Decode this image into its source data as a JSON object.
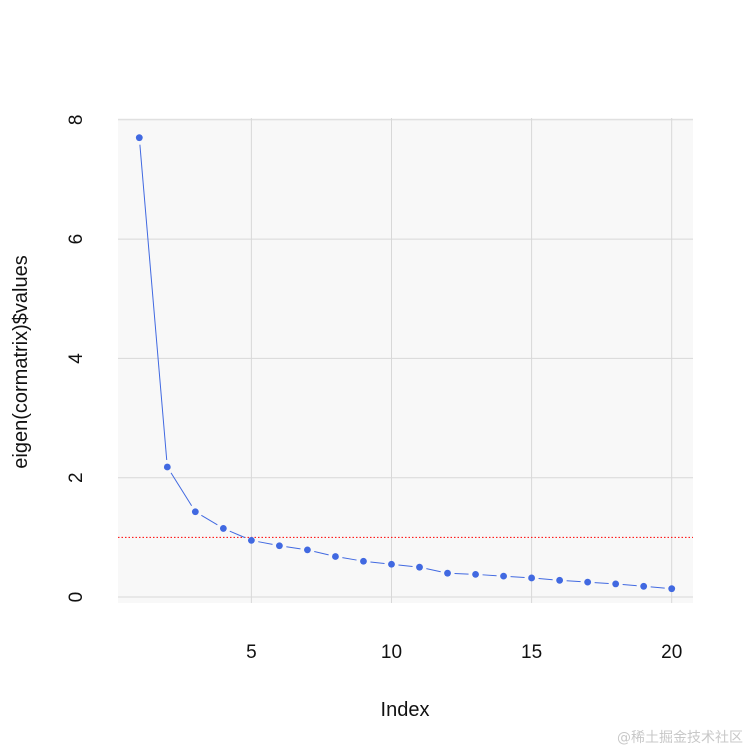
{
  "chart_data": {
    "type": "scatter",
    "title": "",
    "xlabel": "Index",
    "ylabel": "eigen(cormatrix)$values",
    "x": [
      1,
      2,
      3,
      4,
      5,
      6,
      7,
      8,
      9,
      10,
      11,
      12,
      13,
      14,
      15,
      16,
      17,
      18,
      19,
      20
    ],
    "series": [
      {
        "values": [
          7.7,
          2.18,
          1.43,
          1.15,
          0.95,
          0.86,
          0.79,
          0.68,
          0.6,
          0.55,
          0.5,
          0.4,
          0.38,
          0.35,
          0.32,
          0.28,
          0.25,
          0.22,
          0.18,
          0.14
        ],
        "marker": "dot",
        "line": "segments between points",
        "color": "#4169e1"
      }
    ],
    "reference_line": {
      "y": 1,
      "style": "dotted",
      "color": "#ff0000"
    },
    "xlim": [
      0.24,
      20.76
    ],
    "ylim": [
      -0.1,
      8.03
    ],
    "x_ticks": [
      "5",
      "10",
      "15",
      "20"
    ],
    "y_ticks": [
      "0",
      "2",
      "4",
      "6",
      "8"
    ],
    "grid": true,
    "panel_background": "#f8f8f8",
    "grid_color": "#d8d8d8",
    "legend": "none"
  },
  "watermark": "@稀土掘金技术社区"
}
